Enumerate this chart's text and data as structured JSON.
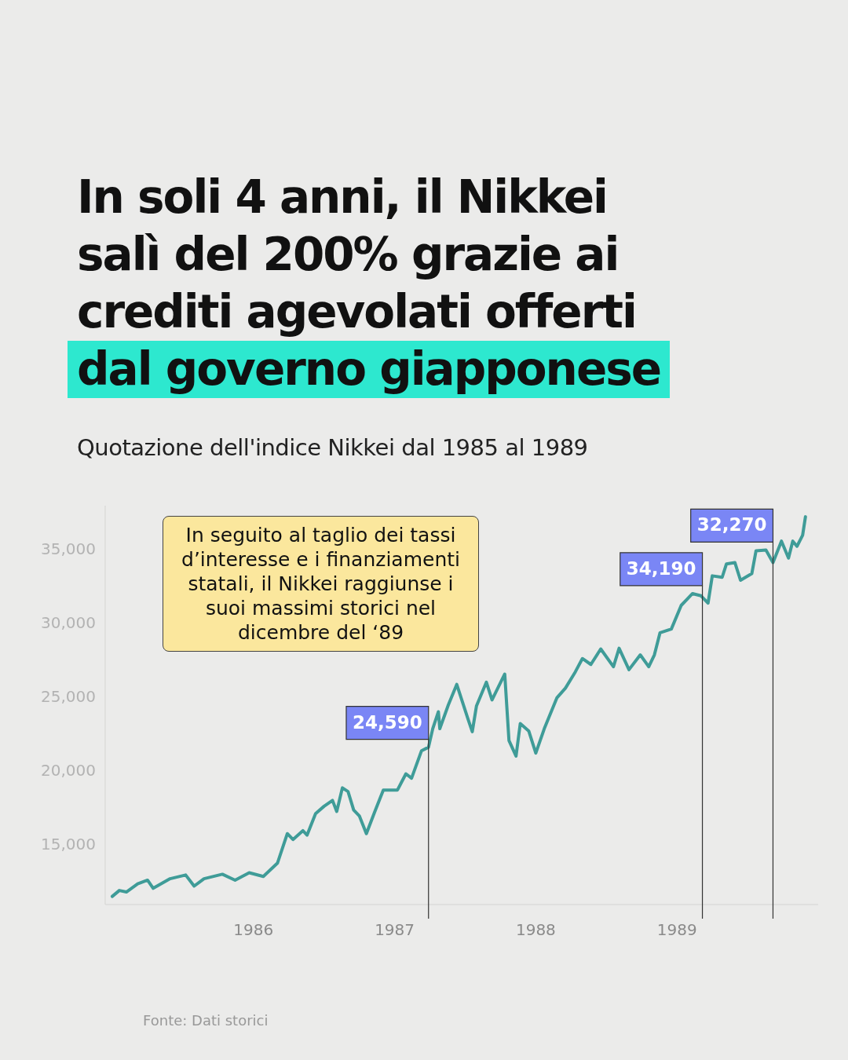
{
  "chart_data": {
    "type": "line",
    "title": "In soli 4 anni, il Nikkei salì del 200% grazie ai crediti agevolati offerti\ndal governo giapponese",
    "subtitle": "Quotazione dell'indice Nikkei dal 1985 al 1989",
    "annotations": [
      "In seguito al taglio dei tassi d’interesse e i finanziamenti statali, il Nikkei raggiunse i suoi massimi storici nel dicembre del ‘89",
      "Fonte: Dati storici",
      "24,590",
      "34,190",
      "32,270"
    ],
    "x": [
      1985.0,
      1985.05,
      1985.1,
      1985.18,
      1985.25,
      1985.29,
      1985.41,
      1985.52,
      1985.58,
      1985.65,
      1985.78,
      1985.87,
      1985.97,
      1986.07,
      1986.17,
      1986.24,
      1986.28,
      1986.35,
      1986.38,
      1986.44,
      1986.5,
      1986.56,
      1986.59,
      1986.63,
      1986.67,
      1986.71,
      1986.75,
      1986.8,
      1986.86,
      1986.92,
      1987.02,
      1987.08,
      1987.12,
      1987.19,
      1987.24,
      1987.27,
      1987.31,
      1987.32,
      1987.38,
      1987.44,
      1987.52,
      1987.55,
      1987.58,
      1987.65,
      1987.69,
      1987.78,
      1987.81,
      1987.86,
      1987.89,
      1987.95,
      1988.0,
      1988.06,
      1988.15,
      1988.21,
      1988.28,
      1988.33,
      1988.39,
      1988.46,
      1988.55,
      1988.59,
      1988.66,
      1988.74,
      1988.8,
      1988.84,
      1988.88,
      1988.96,
      1989.03,
      1989.11,
      1989.17,
      1989.22,
      1989.25,
      1989.32,
      1989.35,
      1989.41,
      1989.45,
      1989.53,
      1989.56,
      1989.63,
      1989.68,
      1989.74,
      1989.79,
      1989.82,
      1989.85,
      1989.89,
      1989.91
    ],
    "series": [
      {
        "color": "#3f9c98",
        "values": [
          11550,
          11950,
          11850,
          12400,
          12650,
          12100,
          12750,
          13000,
          12250,
          12750,
          13050,
          12650,
          13150,
          12900,
          13800,
          15800,
          15400,
          16000,
          15700,
          17150,
          17650,
          18050,
          17300,
          18900,
          18650,
          17400,
          17000,
          15800,
          17300,
          18750,
          18750,
          19850,
          19550,
          21400,
          21650,
          22900,
          24050,
          22900,
          24500,
          25900,
          23550,
          22700,
          24450,
          26050,
          24850,
          26600,
          22100,
          21050,
          23250,
          22750,
          21250,
          22900,
          25000,
          25650,
          26750,
          27650,
          27250,
          28300,
          27100,
          28350,
          26900,
          27900,
          27100,
          27900,
          29400,
          29650,
          31250,
          32050,
          31900,
          31400,
          33250,
          33150,
          34050,
          34150,
          32950,
          33400,
          34950,
          35000,
          34150,
          35600,
          34450,
          35600,
          35250,
          36000,
          37250
        ]
      }
    ],
    "xlim": [
      1984.95,
      1990.0
    ],
    "xticks": [
      1986,
      1987,
      1988,
      1989
    ],
    "ylim": [
      11000,
      38000
    ],
    "yticks": [
      {
        "value": 15000,
        "label": "15,000"
      },
      {
        "value": 20000,
        "label": "20,000"
      },
      {
        "value": 25000,
        "label": "25,000"
      },
      {
        "value": 30000,
        "label": "30,000"
      },
      {
        "value": 35000,
        "label": "35,000"
      }
    ],
    "ref_lines": [
      {
        "axis": "x",
        "value": 1987.24,
        "color": "#333333"
      },
      {
        "axis": "x",
        "value": 1989.18,
        "color": "#333333"
      },
      {
        "axis": "x",
        "value": 1989.68,
        "color": "#333333"
      }
    ],
    "grid": false,
    "legend": false,
    "marker": "none",
    "line_style": "solid"
  }
}
